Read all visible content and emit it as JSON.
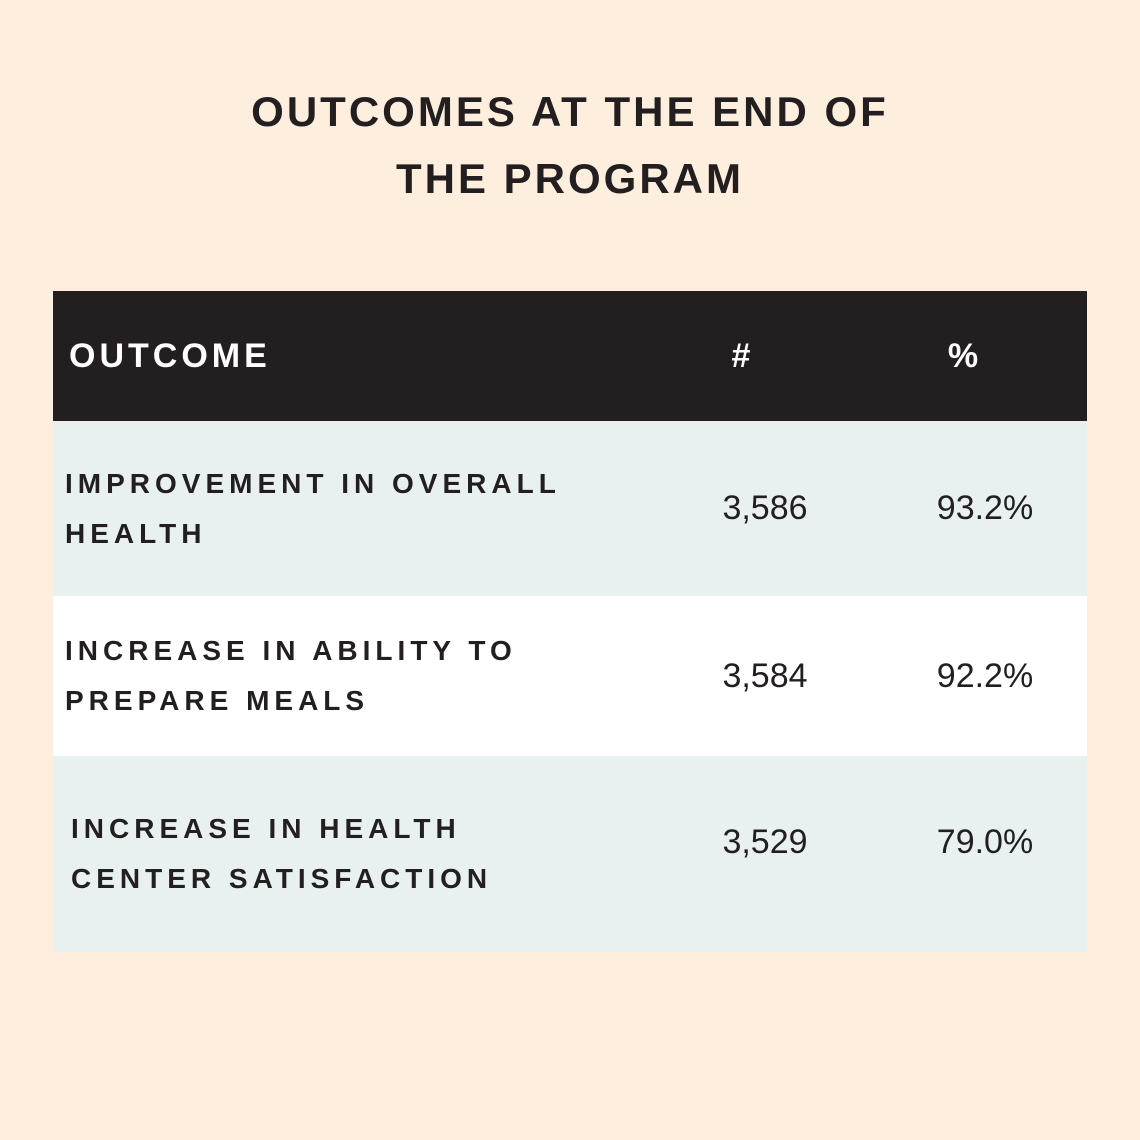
{
  "title": "OUTCOMES AT THE END OF THE PROGRAM",
  "table": {
    "header": [
      "OUTCOME",
      "#",
      "%"
    ],
    "rows": [
      [
        "IMPROVEMENT IN OVERALL HEALTH",
        "3,586",
        "93.2%"
      ],
      [
        "INCREASE IN ABILITY TO PREPARE MEALS",
        "3,584",
        "92.2%"
      ],
      [
        "INCREASE IN HEALTH CENTER SATISFACTION",
        "3,529",
        "79.0%"
      ]
    ]
  }
}
